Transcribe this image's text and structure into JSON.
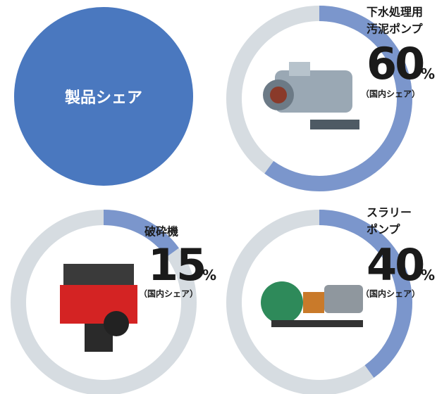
{
  "title": "製品シェア",
  "items": [
    {
      "name": [
        "下水処理用",
        "汚泥ポンプ"
      ],
      "value": 60,
      "unit": "%",
      "note": "（国内シェア）"
    },
    {
      "name": [
        "破砕機"
      ],
      "value": 15,
      "unit": "%",
      "note": "（国内シェア）"
    },
    {
      "name": [
        "スラリー",
        "ポンプ"
      ],
      "value": 40,
      "unit": "%",
      "note": "（国内シェア）"
    }
  ]
}
